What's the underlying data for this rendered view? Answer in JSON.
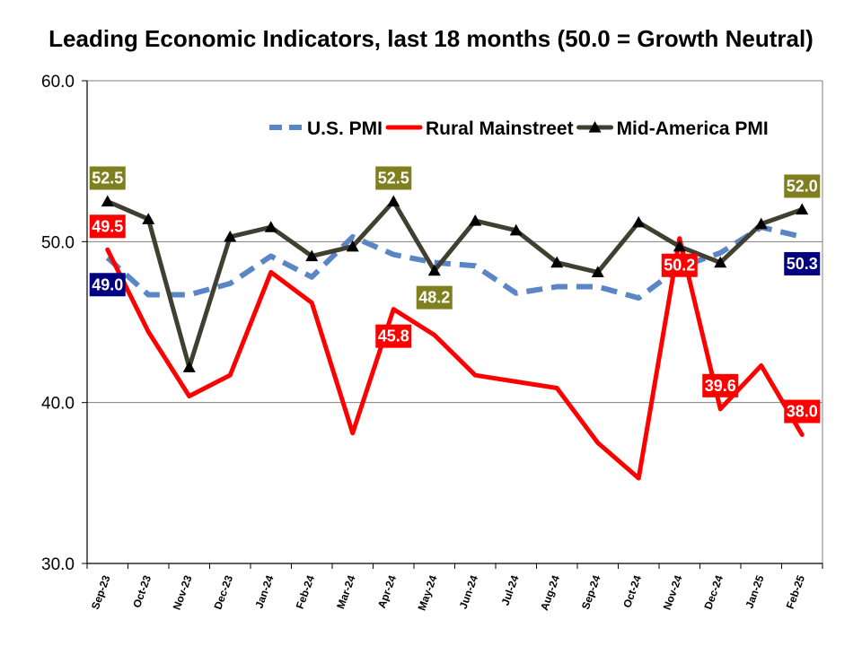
{
  "chart_data": {
    "type": "line",
    "title": "Leading Economic Indicators, last 18 months (50.0 = Growth Neutral)",
    "xlabel": "",
    "ylabel": "",
    "ylim": [
      30,
      60
    ],
    "yticks": [
      "30.0",
      "40.0",
      "50.0",
      "60.0"
    ],
    "yticks_values": [
      30,
      40,
      50,
      60
    ],
    "grid": "horizontal",
    "legend_position": "top-right",
    "categories": [
      "Sep-23",
      "Oct-23",
      "Nov-23",
      "Dec-23",
      "Jan-24",
      "Feb-24",
      "Mar-24",
      "Apr-24",
      "May-24",
      "Jun-24",
      "Jul-24",
      "Aug-24",
      "Sep-24",
      "Oct-24",
      "Nov-24",
      "Dec-24",
      "Jan-25",
      "Feb-25"
    ],
    "series": [
      {
        "name": "U.S. PMI",
        "style": "dashed",
        "color": "#5B86C5",
        "values": [
          49.0,
          46.7,
          46.7,
          47.4,
          49.1,
          47.8,
          50.3,
          49.2,
          48.7,
          48.5,
          46.8,
          47.2,
          47.2,
          46.5,
          48.4,
          49.3,
          50.9,
          50.3
        ]
      },
      {
        "name": "Rural Mainstreet",
        "style": "solid",
        "color": "#FF0000",
        "values": [
          49.5,
          44.4,
          40.4,
          41.7,
          48.1,
          46.2,
          38.1,
          45.8,
          44.2,
          41.7,
          41.3,
          40.9,
          37.5,
          35.3,
          50.2,
          39.6,
          42.3,
          38.0
        ]
      },
      {
        "name": "Mid-America PMI",
        "style": "solid-triangle",
        "color": "#403F30",
        "values": [
          52.5,
          51.4,
          42.2,
          50.3,
          50.9,
          49.1,
          49.7,
          52.5,
          48.2,
          51.3,
          50.7,
          48.7,
          48.1,
          51.2,
          49.7,
          48.7,
          51.1,
          52.0
        ]
      }
    ],
    "data_labels": [
      {
        "series": "U.S. PMI",
        "category": "Sep-23",
        "text": "49.0",
        "bg": "#000080",
        "place": "below"
      },
      {
        "series": "U.S. PMI",
        "category": "Feb-25",
        "text": "50.3",
        "bg": "#000080",
        "place": "below"
      },
      {
        "series": "Rural Mainstreet",
        "category": "Sep-23",
        "text": "49.5",
        "bg": "#FF0000",
        "place": "above"
      },
      {
        "series": "Rural Mainstreet",
        "category": "Apr-24",
        "text": "45.8",
        "bg": "#FF0000",
        "place": "below"
      },
      {
        "series": "Rural Mainstreet",
        "category": "Nov-24",
        "text": "50.2",
        "bg": "#FF0000",
        "place": "below"
      },
      {
        "series": "Rural Mainstreet",
        "category": "Dec-24",
        "text": "39.6",
        "bg": "#FF0000",
        "place": "above"
      },
      {
        "series": "Rural Mainstreet",
        "category": "Feb-25",
        "text": "38.0",
        "bg": "#FF0000",
        "place": "above"
      },
      {
        "series": "Mid-America PMI",
        "category": "Sep-23",
        "text": "52.5",
        "bg": "#7F7F1F",
        "place": "above"
      },
      {
        "series": "Mid-America PMI",
        "category": "Apr-24",
        "text": "52.5",
        "bg": "#7F7F1F",
        "place": "above"
      },
      {
        "series": "Mid-America PMI",
        "category": "May-24",
        "text": "48.2",
        "bg": "#7F7F1F",
        "place": "below"
      },
      {
        "series": "Mid-America PMI",
        "category": "Feb-25",
        "text": "52.0",
        "bg": "#7F7F1F",
        "place": "above"
      }
    ]
  }
}
